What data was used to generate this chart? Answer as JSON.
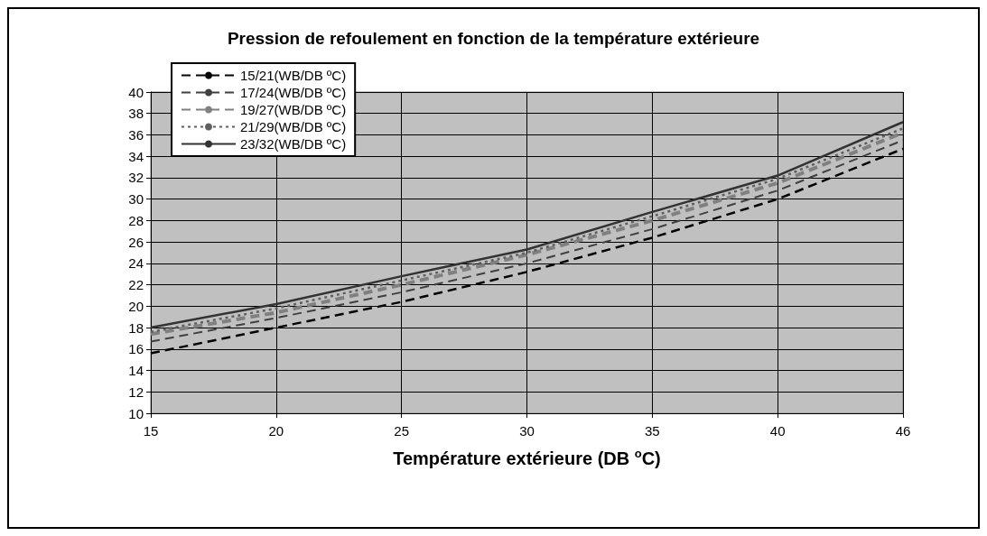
{
  "chart_data": {
    "type": "line",
    "title": "Pression de refoulement en fonction de la température extérieure",
    "xlabel": "Température extérieure (DB $^{o}$C)",
    "categories": [
      "15",
      "20",
      "25",
      "30",
      "35",
      "40",
      "46"
    ],
    "ylim": [
      10,
      40
    ],
    "yticks": [
      10,
      12,
      14,
      16,
      18,
      20,
      22,
      24,
      26,
      28,
      30,
      32,
      34,
      36,
      38,
      40
    ],
    "grid": true,
    "legend": "top left",
    "marker": "none",
    "series": [
      {
        "name": "15/21(WB/DB ºC)",
        "color": "#000000",
        "line_style": "dashed",
        "values": [
          15.6,
          18.0,
          20.4,
          23.2,
          26.4,
          30.0,
          34.7
        ]
      },
      {
        "name": "17/24(WB/DB ºC)",
        "color": "#404040",
        "line_style": "dashed",
        "values": [
          16.7,
          18.9,
          21.3,
          24.0,
          27.2,
          30.8,
          35.5
        ]
      },
      {
        "name": "19/27(WB/DB ºC)",
        "color": "#808080",
        "line_style": "dashed",
        "values": [
          17.4,
          19.4,
          22.0,
          24.8,
          28.0,
          31.5,
          36.2
        ]
      },
      {
        "name": "21/29(WB/DB ºC)",
        "color": "#606060",
        "line_style": "dotted",
        "values": [
          17.6,
          19.8,
          22.4,
          25.0,
          28.4,
          31.9,
          36.6
        ]
      },
      {
        "name": "23/32(WB/DB ºC)",
        "color": "#333333",
        "line_style": "solid",
        "values": [
          18.0,
          20.2,
          22.8,
          25.3,
          28.8,
          32.2,
          37.2
        ]
      }
    ]
  }
}
